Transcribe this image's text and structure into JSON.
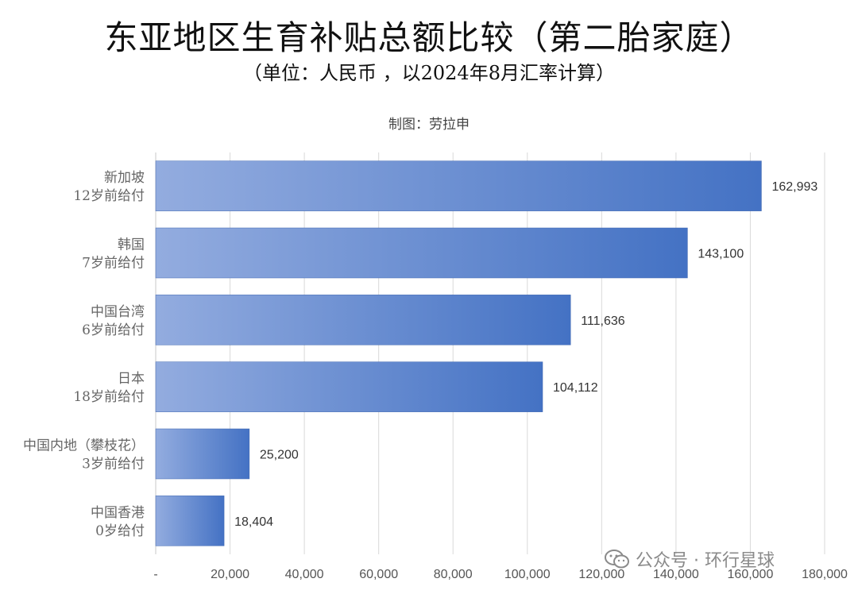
{
  "chart_data": {
    "type": "bar",
    "orientation": "horizontal",
    "title": "东亚地区生育补贴总额比较（第二胎家庭）",
    "subtitle": "（单位：人民币 ，以2024年8月汇率计算）",
    "credit": "制图：劳拉申",
    "categories": [
      [
        "新加坡",
        "12岁前给付"
      ],
      [
        "韩国",
        "7岁前给付"
      ],
      [
        "中国台湾",
        "6岁前给付"
      ],
      [
        "日本",
        "18岁前给付"
      ],
      [
        "中国内地（攀枝花）",
        "3岁前给付"
      ],
      [
        "中国香港",
        "0岁给付"
      ]
    ],
    "values": [
      162993,
      143100,
      111636,
      104112,
      25200,
      18404
    ],
    "value_labels": [
      "162,993",
      "143,100",
      "111,636",
      "104,112",
      "25,200",
      "18,404"
    ],
    "xlim": [
      0,
      180000
    ],
    "xticks": [
      0,
      20000,
      40000,
      60000,
      80000,
      100000,
      120000,
      140000,
      160000,
      180000
    ],
    "xtick_labels": [
      "-",
      "20,000",
      "40,000",
      "60,000",
      "80,000",
      "100,000",
      "120,000",
      "140,000",
      "160,000",
      "180,000"
    ],
    "grid": true,
    "bar_gradient": [
      "#93acdf",
      "#4472c4"
    ]
  },
  "watermark": {
    "text": "公众号 · 环行星球",
    "icon": "wechat-icon"
  }
}
